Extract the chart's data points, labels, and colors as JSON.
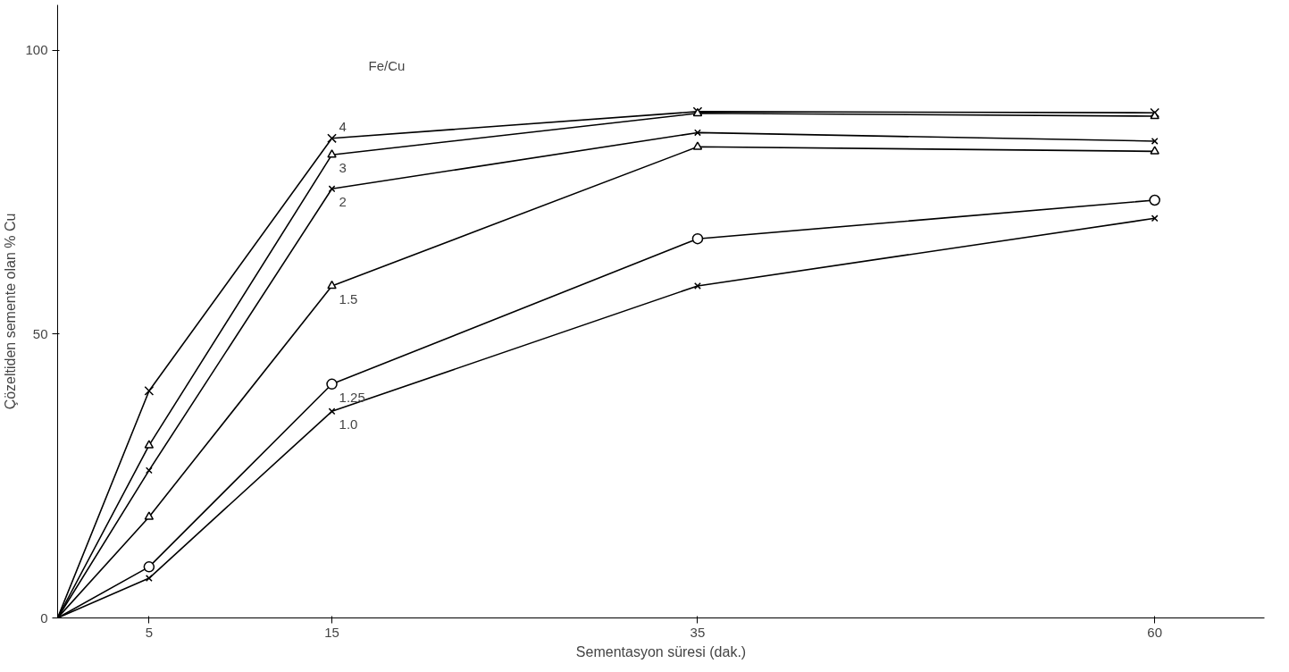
{
  "chart_data": {
    "type": "line",
    "xlabel": "Sementasyon süresi (dak.)",
    "ylabel": "Çözeltiden semente olan % Cu",
    "annotations": [
      "Fe/Cu"
    ],
    "x": [
      0,
      5,
      15,
      35,
      60
    ],
    "xlim": [
      0,
      66
    ],
    "xticks": [
      5,
      15,
      35,
      60
    ],
    "ylim": [
      0,
      108
    ],
    "yticks": [
      0,
      50,
      100
    ],
    "grid": false,
    "series": [
      {
        "name": "4",
        "color": "#000000",
        "marker": "cross",
        "values": [
          0,
          40,
          84.5,
          89.2,
          89
        ]
      },
      {
        "name": "3",
        "color": "#000000",
        "marker": "triangle",
        "values": [
          0,
          30.4,
          81.6,
          88.9,
          88.4
        ]
      },
      {
        "name": "2",
        "color": "#000000",
        "marker": "cross",
        "values": [
          0,
          26,
          75.6,
          85.5,
          84
        ]
      },
      {
        "name": "1.5",
        "color": "#000000",
        "marker": "triangle",
        "values": [
          0,
          17.8,
          58.5,
          83,
          82.2
        ]
      },
      {
        "name": "1.25",
        "color": "#000000",
        "marker": "circle",
        "values": [
          0,
          9,
          41.2,
          66.8,
          73.6
        ]
      },
      {
        "name": "1.0",
        "color": "#000000",
        "marker": "cross",
        "values": [
          0,
          7,
          36.4,
          58.5,
          70.4
        ]
      }
    ]
  }
}
